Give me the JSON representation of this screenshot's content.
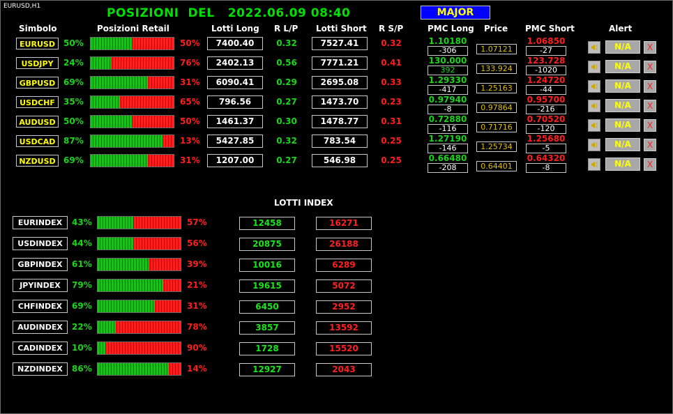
{
  "window": {
    "chart_title": "EURUSD,H1"
  },
  "header": {
    "title": "POSIZIONI  DEL   2022.06.09 08:40",
    "group_button": "MAJOR"
  },
  "columns": {
    "symbol": "Simbolo",
    "retail": "Posizioni Retail",
    "lots_long": "Lotti Long",
    "r_lp": "R L/P",
    "lots_short": "Lotti Short",
    "r_sp": "R S/P",
    "pmc_long": "PMC Long",
    "price": "Price",
    "pmc_short": "PMC Short",
    "alert": "Alert"
  },
  "pairs": [
    {
      "symbol": "EURUSD",
      "long_pct": "50%",
      "short_pct": "50%",
      "long_frac": 0.5,
      "lots_long": "7400.40",
      "r_lp": "0.32",
      "lots_short": "7527.41",
      "r_sp": "0.32",
      "pmc_long": "1.10180",
      "pmc_long_diff": "-306",
      "price": "1.07121",
      "pmc_short": "1.06850",
      "pmc_short_diff": "-27",
      "alert": "N/A",
      "close": "X"
    },
    {
      "symbol": "USDJPY",
      "long_pct": "24%",
      "short_pct": "76%",
      "long_frac": 0.24,
      "lots_long": "2402.13",
      "r_lp": "0.56",
      "lots_short": "7771.21",
      "r_sp": "0.41",
      "pmc_long": "130.000",
      "pmc_long_diff": "392",
      "price": "133.924",
      "pmc_short": "123.728",
      "pmc_short_diff": "-1020",
      "alert": "N/A",
      "close": "X"
    },
    {
      "symbol": "GBPUSD",
      "long_pct": "69%",
      "short_pct": "31%",
      "long_frac": 0.69,
      "lots_long": "6090.41",
      "r_lp": "0.29",
      "lots_short": "2695.08",
      "r_sp": "0.33",
      "pmc_long": "1.29330",
      "pmc_long_diff": "-417",
      "price": "1.25163",
      "pmc_short": "1.24720",
      "pmc_short_diff": "-44",
      "alert": "N/A",
      "close": "X"
    },
    {
      "symbol": "USDCHF",
      "long_pct": "35%",
      "short_pct": "65%",
      "long_frac": 0.35,
      "lots_long": "796.56",
      "r_lp": "0.27",
      "lots_short": "1473.70",
      "r_sp": "0.23",
      "pmc_long": "0.97940",
      "pmc_long_diff": "-8",
      "price": "0.97864",
      "pmc_short": "0.95700",
      "pmc_short_diff": "-216",
      "alert": "N/A",
      "close": "X"
    },
    {
      "symbol": "AUDUSD",
      "long_pct": "50%",
      "short_pct": "50%",
      "long_frac": 0.5,
      "lots_long": "1461.37",
      "r_lp": "0.30",
      "lots_short": "1478.77",
      "r_sp": "0.31",
      "pmc_long": "0.72880",
      "pmc_long_diff": "-116",
      "price": "0.71716",
      "pmc_short": "0.70520",
      "pmc_short_diff": "-120",
      "alert": "N/A",
      "close": "X"
    },
    {
      "symbol": "USDCAD",
      "long_pct": "87%",
      "short_pct": "13%",
      "long_frac": 0.87,
      "lots_long": "5427.85",
      "r_lp": "0.32",
      "lots_short": "783.54",
      "r_sp": "0.25",
      "pmc_long": "1.27190",
      "pmc_long_diff": "-146",
      "price": "1.25734",
      "pmc_short": "1.25680",
      "pmc_short_diff": "-5",
      "alert": "N/A",
      "close": "X"
    },
    {
      "symbol": "NZDUSD",
      "long_pct": "69%",
      "short_pct": "31%",
      "long_frac": 0.69,
      "lots_long": "1207.00",
      "r_lp": "0.27",
      "lots_short": "546.98",
      "r_sp": "0.25",
      "pmc_long": "0.66480",
      "pmc_long_diff": "-208",
      "price": "0.64401",
      "pmc_short": "0.64320",
      "pmc_short_diff": "-8",
      "alert": "N/A",
      "close": "X"
    }
  ],
  "index_section": {
    "title": "LOTTI INDEX"
  },
  "indexes": [
    {
      "symbol": "EURINDEX",
      "long_pct": "43%",
      "short_pct": "57%",
      "long_frac": 0.43,
      "lots_long": "12458",
      "lots_short": "16271"
    },
    {
      "symbol": "USDINDEX",
      "long_pct": "44%",
      "short_pct": "56%",
      "long_frac": 0.44,
      "lots_long": "20875",
      "lots_short": "26188"
    },
    {
      "symbol": "GBPINDEX",
      "long_pct": "61%",
      "short_pct": "39%",
      "long_frac": 0.61,
      "lots_long": "10016",
      "lots_short": "6289"
    },
    {
      "symbol": "JPYINDEX",
      "long_pct": "79%",
      "short_pct": "21%",
      "long_frac": 0.79,
      "lots_long": "19615",
      "lots_short": "5072"
    },
    {
      "symbol": "CHFINDEX",
      "long_pct": "69%",
      "short_pct": "31%",
      "long_frac": 0.69,
      "lots_long": "6450",
      "lots_short": "2952"
    },
    {
      "symbol": "AUDINDEX",
      "long_pct": "22%",
      "short_pct": "78%",
      "long_frac": 0.22,
      "lots_long": "3857",
      "lots_short": "13592"
    },
    {
      "symbol": "CADINDEX",
      "long_pct": "10%",
      "short_pct": "90%",
      "long_frac": 0.1,
      "lots_long": "1728",
      "lots_short": "15520"
    },
    {
      "symbol": "NZDINDEX",
      "long_pct": "86%",
      "short_pct": "14%",
      "long_frac": 0.86,
      "lots_long": "12927",
      "lots_short": "2043"
    }
  ],
  "colors": {
    "long": "#19c219",
    "short": "#ff1e1e",
    "symbol_text": "#ffff00",
    "title": "#00e000",
    "group_button_bg": "#0000ff"
  },
  "icons": {
    "alert_button": "bell-icon",
    "close_button": "close-icon"
  }
}
